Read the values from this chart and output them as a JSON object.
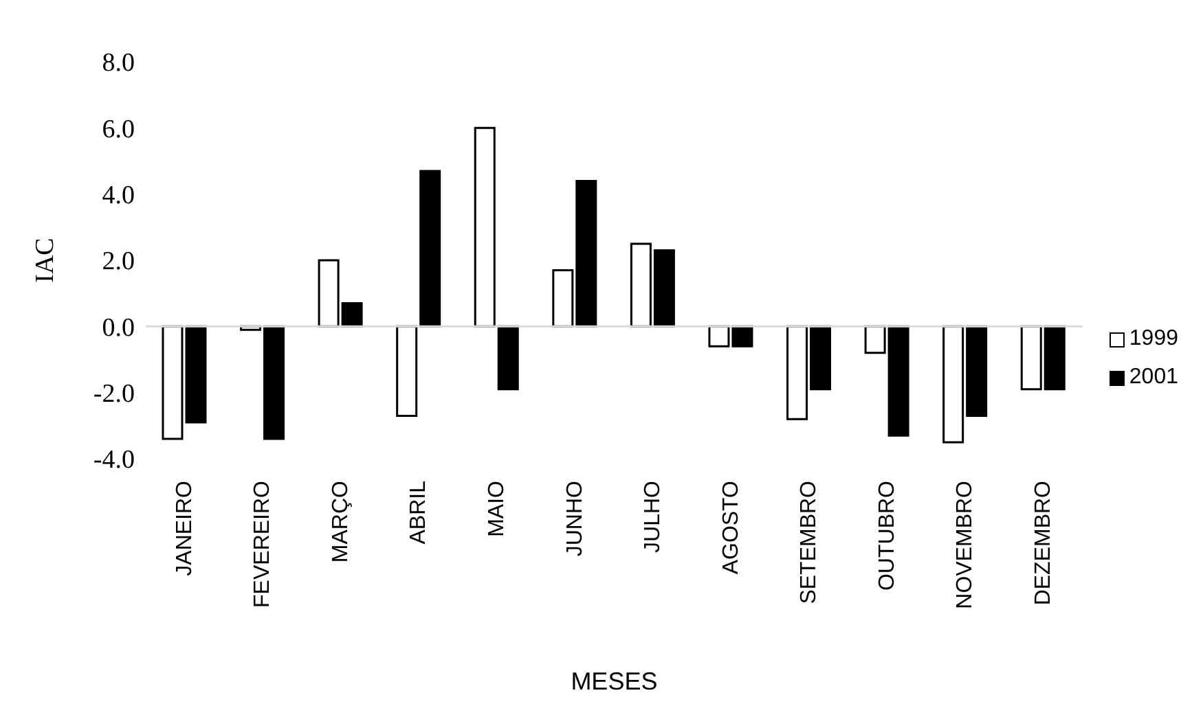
{
  "chart_data": {
    "type": "bar",
    "xlabel": "MESES",
    "ylabel": "IAC",
    "categories": [
      "JANEIRO",
      "FEVEREIRO",
      "MARÇO",
      "ABRIL",
      "MAIO",
      "JUNHO",
      "JULHO",
      "AGOSTO",
      "SETEMBRO",
      "OUTUBRO",
      "NOVEMBRO",
      "DEZEMBRO"
    ],
    "series": [
      {
        "name": "1999",
        "color": "#ffffff",
        "values": [
          -3.4,
          -0.1,
          2.0,
          -2.7,
          6.0,
          1.7,
          2.5,
          -0.6,
          -2.8,
          -0.8,
          -3.5,
          -1.9
        ]
      },
      {
        "name": "2001",
        "color": "#000000",
        "values": [
          -2.9,
          -3.4,
          0.7,
          4.7,
          -1.9,
          4.4,
          2.3,
          -0.6,
          -1.9,
          -3.3,
          -2.7,
          -1.9
        ]
      }
    ],
    "ylim": [
      -4,
      8
    ],
    "yticks": [
      {
        "value": -4,
        "label": "-4.0"
      },
      {
        "value": -2,
        "label": "-2.0"
      },
      {
        "value": 0,
        "label": "0.0"
      },
      {
        "value": 2,
        "label": "2.0"
      },
      {
        "value": 4,
        "label": "4.0"
      },
      {
        "value": 6,
        "label": "6.0"
      },
      {
        "value": 8,
        "label": "8.0"
      }
    ],
    "legend": "right"
  }
}
